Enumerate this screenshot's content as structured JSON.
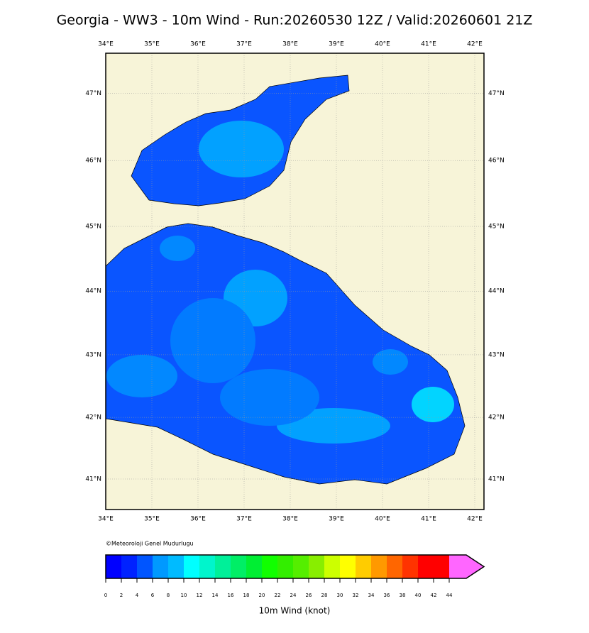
{
  "title": "Georgia - WW3 - 10m Wind - Run:20260530 12Z / Valid:20260601 21Z",
  "map": {
    "lon_ticks": [
      {
        "value": 34,
        "label": "34°E"
      },
      {
        "value": 35,
        "label": "35°E"
      },
      {
        "value": 36,
        "label": "36°E"
      },
      {
        "value": 37,
        "label": "37°E"
      },
      {
        "value": 38,
        "label": "38°E"
      },
      {
        "value": 39,
        "label": "39°E"
      },
      {
        "value": 40,
        "label": "40°E"
      },
      {
        "value": 41,
        "label": "41°E"
      },
      {
        "value": 42,
        "label": "42°E"
      }
    ],
    "lat_ticks": [
      {
        "value": 41,
        "label": "41°N"
      },
      {
        "value": 42,
        "label": "42°N"
      },
      {
        "value": 43,
        "label": "43°N"
      },
      {
        "value": 44,
        "label": "44°N"
      },
      {
        "value": 45,
        "label": "45°N"
      },
      {
        "value": 46,
        "label": "46°N"
      },
      {
        "value": 47,
        "label": "47°N"
      }
    ],
    "copyright": "©Meteoroloji Genel Mudurlugu"
  },
  "colorbar": {
    "label": "10m Wind (knot)",
    "ticks": [
      0,
      2,
      4,
      6,
      8,
      10,
      12,
      14,
      16,
      18,
      20,
      22,
      24,
      26,
      28,
      30,
      32,
      34,
      36,
      38,
      40,
      42,
      44
    ],
    "colors": [
      "#0000ff",
      "#0022ff",
      "#0055ff",
      "#0099ff",
      "#00bbff",
      "#00ffff",
      "#00f5cc",
      "#00f099",
      "#00ee66",
      "#00ee33",
      "#11ff00",
      "#33ee00",
      "#55ee00",
      "#88ee00",
      "#ccff00",
      "#ffff00",
      "#ffcc00",
      "#ff9900",
      "#ff6600",
      "#ff3300",
      "#ff0000",
      "#ff0000"
    ],
    "extend_color": "#ff66ff"
  }
}
